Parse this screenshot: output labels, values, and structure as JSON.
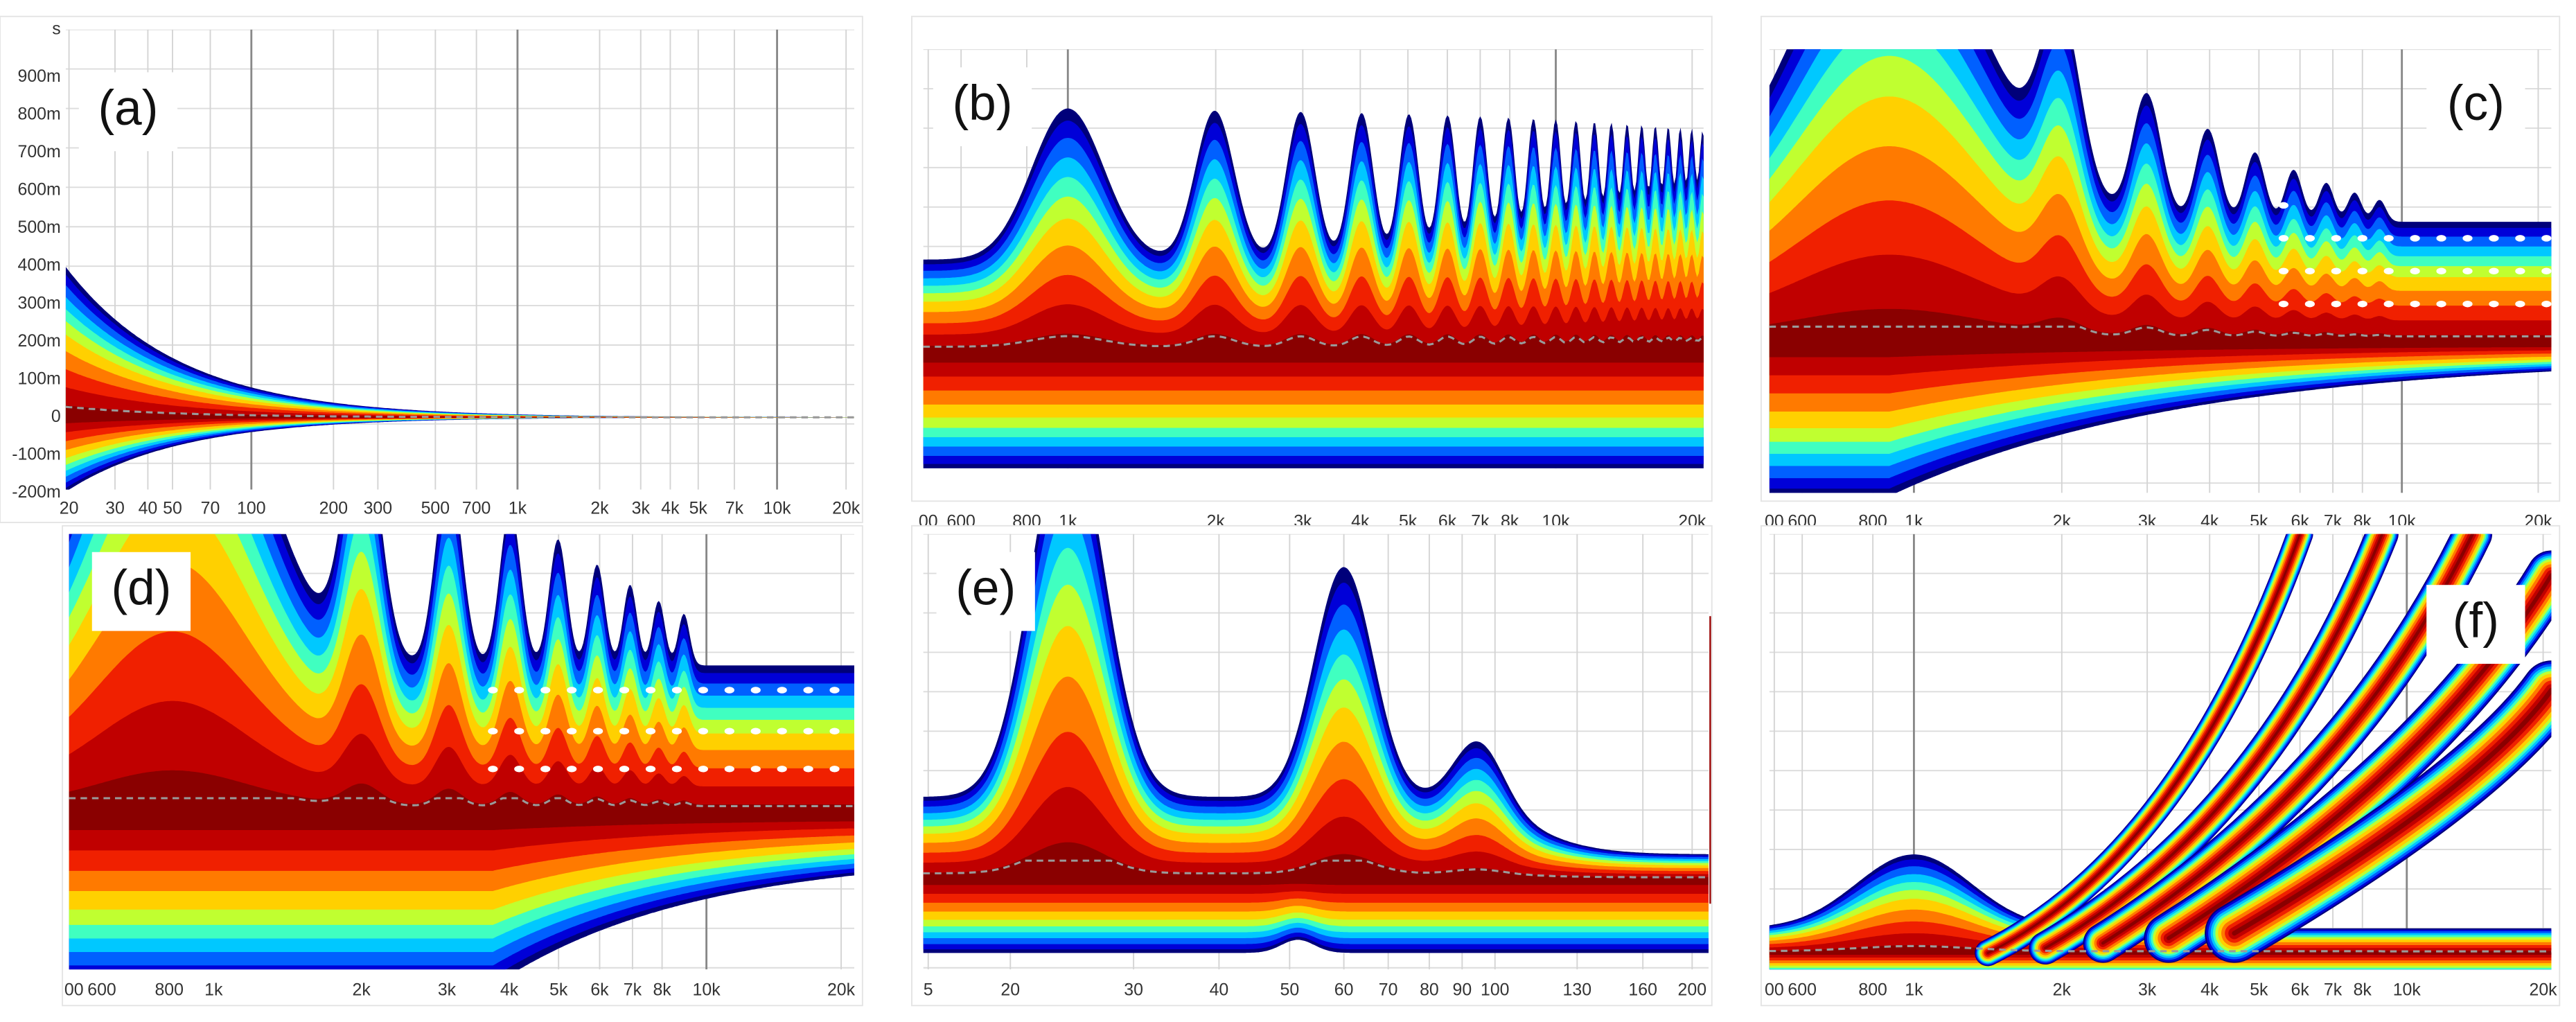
{
  "panels": [
    {
      "label": "(a)",
      "y_unit": "s",
      "y_ticks": [
        "900m",
        "800m",
        "700m",
        "600m",
        "500m",
        "400m",
        "300m",
        "200m",
        "100m",
        "0",
        "-100m",
        "-200m"
      ],
      "x_ticks": [
        "20",
        "30",
        "40",
        "50",
        "70",
        "100",
        "200",
        "300",
        "500",
        "700",
        "1k",
        "2k",
        "3k",
        "4k",
        "5k",
        "7k",
        "10k",
        "20k"
      ]
    },
    {
      "label": "(b)",
      "x_ticks": [
        "00",
        "600",
        "800",
        "1k",
        "2k",
        "3k",
        "4k",
        "5k",
        "6k",
        "7k",
        "8k",
        "10k",
        "20k"
      ]
    },
    {
      "label": "(c)",
      "x_ticks": [
        "00",
        "600",
        "800",
        "1k",
        "2k",
        "3k",
        "4k",
        "5k",
        "6k",
        "7k",
        "8k",
        "10k",
        "20k"
      ]
    },
    {
      "label": "(d)",
      "x_ticks": [
        "00",
        "600",
        "800",
        "1k",
        "2k",
        "3k",
        "4k",
        "5k",
        "6k",
        "7k",
        "8k",
        "10k",
        "20k"
      ]
    },
    {
      "label": "(e)",
      "x_ticks": [
        "5",
        "20",
        "30",
        "40",
        "50",
        "60",
        "70",
        "80",
        "90",
        "100",
        "130",
        "160",
        "200"
      ]
    },
    {
      "label": "(f)",
      "x_ticks": [
        "00",
        "600",
        "800",
        "1k",
        "2k",
        "3k",
        "4k",
        "5k",
        "6k",
        "7k",
        "8k",
        "10k",
        "20k"
      ]
    }
  ]
}
